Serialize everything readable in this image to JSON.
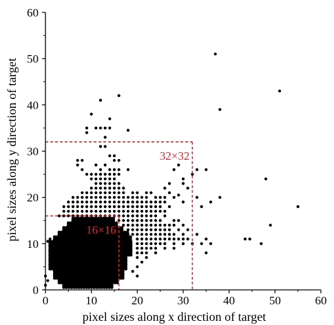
{
  "chart_data": {
    "type": "scatter",
    "title": "",
    "xlabel": "pixel sizes along x direction of target",
    "ylabel": "pixel sizes along y direction of target",
    "xlim": [
      0,
      60
    ],
    "ylim": [
      0,
      60
    ],
    "xticks": [
      0,
      10,
      20,
      30,
      40,
      50,
      60
    ],
    "yticks": [
      0,
      10,
      20,
      30,
      40,
      50,
      60
    ],
    "grid": false,
    "marker_color": "#000000",
    "annotation_color": "#e8262a",
    "annotations": [
      {
        "label": "16×16",
        "x0": 0,
        "y0": 0,
        "x1": 16,
        "y1": 16
      },
      {
        "label": "32×32",
        "x0": 0,
        "y0": 0,
        "x1": 32,
        "y1": 32
      }
    ],
    "dense_region": {
      "description_note": "",
      "rows": [
        {
          "y": 1,
          "x_from": 4,
          "x_to": 15
        },
        {
          "y": 2,
          "x_from": 3,
          "x_to": 16
        },
        {
          "y": 3,
          "x_from": 2,
          "x_to": 17
        },
        {
          "y": 4,
          "x_from": 2,
          "x_to": 17
        },
        {
          "y": 5,
          "x_from": 1,
          "x_to": 18
        },
        {
          "y": 6,
          "x_from": 1,
          "x_to": 18
        },
        {
          "y": 7,
          "x_from": 1,
          "x_to": 18
        },
        {
          "y": 8,
          "x_from": 1,
          "x_to": 19
        },
        {
          "y": 9,
          "x_from": 1,
          "x_to": 19
        },
        {
          "y": 10,
          "x_from": 1,
          "x_to": 19
        },
        {
          "y": 11,
          "x_from": 2,
          "x_to": 19
        },
        {
          "y": 12,
          "x_from": 3,
          "x_to": 18
        },
        {
          "y": 13,
          "x_from": 4,
          "x_to": 17
        },
        {
          "y": 14,
          "x_from": 5,
          "x_to": 16
        },
        {
          "y": 15,
          "x_from": 6,
          "x_to": 15
        }
      ]
    },
    "points": [
      [
        37,
        51
      ],
      [
        51,
        43
      ],
      [
        38,
        39
      ],
      [
        16,
        42
      ],
      [
        12,
        41
      ],
      [
        10,
        38
      ],
      [
        14,
        37
      ],
      [
        9,
        35
      ],
      [
        9,
        34
      ],
      [
        11,
        35
      ],
      [
        12,
        35
      ],
      [
        13,
        35
      ],
      [
        14,
        35
      ],
      [
        18,
        34.5
      ],
      [
        13,
        33
      ],
      [
        13,
        31
      ],
      [
        12,
        31
      ],
      [
        14,
        29
      ],
      [
        15,
        29
      ],
      [
        15,
        28
      ],
      [
        16,
        28
      ],
      [
        7,
        28
      ],
      [
        8,
        28
      ],
      [
        7,
        27
      ],
      [
        8,
        26
      ],
      [
        11,
        27
      ],
      [
        12,
        26
      ],
      [
        13,
        27
      ],
      [
        14,
        26
      ],
      [
        15,
        26
      ],
      [
        16,
        26
      ],
      [
        18,
        26
      ],
      [
        9,
        25
      ],
      [
        10,
        25
      ],
      [
        11,
        25
      ],
      [
        12,
        25
      ],
      [
        13,
        25
      ],
      [
        14,
        25
      ],
      [
        15,
        25
      ],
      [
        16,
        25
      ],
      [
        10,
        24
      ],
      [
        11,
        24
      ],
      [
        12,
        24
      ],
      [
        13,
        24
      ],
      [
        14,
        24
      ],
      [
        15,
        24
      ],
      [
        11,
        23
      ],
      [
        12,
        23
      ],
      [
        13,
        23
      ],
      [
        14,
        23
      ],
      [
        15,
        23
      ],
      [
        16,
        23
      ],
      [
        10,
        22
      ],
      [
        11,
        22
      ],
      [
        12,
        22
      ],
      [
        13,
        22
      ],
      [
        14,
        22
      ],
      [
        15,
        22
      ],
      [
        16,
        22
      ],
      [
        17,
        22
      ],
      [
        8,
        21
      ],
      [
        9,
        21
      ],
      [
        10,
        21
      ],
      [
        11,
        21
      ],
      [
        12,
        21
      ],
      [
        13,
        21
      ],
      [
        14,
        21
      ],
      [
        15,
        21
      ],
      [
        16,
        21
      ],
      [
        17,
        21
      ],
      [
        19,
        21
      ],
      [
        20,
        21
      ],
      [
        22,
        21
      ],
      [
        23,
        21
      ],
      [
        26,
        22
      ],
      [
        27,
        21
      ],
      [
        29,
        20.5
      ],
      [
        30,
        23
      ],
      [
        30,
        24
      ],
      [
        31,
        22
      ],
      [
        32,
        25
      ],
      [
        33,
        26
      ],
      [
        35,
        26
      ],
      [
        28,
        26
      ],
      [
        29,
        27
      ],
      [
        27,
        23
      ],
      [
        6,
        20
      ],
      [
        7,
        20
      ],
      [
        8,
        20
      ],
      [
        9,
        20
      ],
      [
        10,
        20
      ],
      [
        11,
        20
      ],
      [
        12,
        20
      ],
      [
        13,
        20
      ],
      [
        14,
        20
      ],
      [
        15,
        20
      ],
      [
        16,
        20
      ],
      [
        17,
        20
      ],
      [
        18,
        20
      ],
      [
        19,
        20
      ],
      [
        20,
        20
      ],
      [
        21,
        20
      ],
      [
        22,
        20
      ],
      [
        24,
        20
      ],
      [
        25,
        20
      ],
      [
        26,
        20
      ],
      [
        28,
        20
      ],
      [
        33,
        20
      ],
      [
        38,
        20
      ],
      [
        5,
        19
      ],
      [
        6,
        19
      ],
      [
        7,
        19
      ],
      [
        8,
        19
      ],
      [
        9,
        19
      ],
      [
        10,
        19
      ],
      [
        11,
        19
      ],
      [
        12,
        19
      ],
      [
        13,
        19
      ],
      [
        14,
        19
      ],
      [
        15,
        19
      ],
      [
        16,
        19
      ],
      [
        17,
        19
      ],
      [
        18,
        19
      ],
      [
        19,
        19
      ],
      [
        20,
        19
      ],
      [
        21,
        19
      ],
      [
        22,
        19
      ],
      [
        23,
        19
      ],
      [
        24,
        19
      ],
      [
        25,
        19
      ],
      [
        26,
        19
      ],
      [
        30,
        19
      ],
      [
        36,
        19
      ],
      [
        48,
        24
      ],
      [
        34,
        18
      ],
      [
        55,
        18
      ],
      [
        4,
        18
      ],
      [
        5,
        18
      ],
      [
        6,
        18
      ],
      [
        7,
        18
      ],
      [
        8,
        18
      ],
      [
        9,
        18
      ],
      [
        10,
        18
      ],
      [
        11,
        18
      ],
      [
        12,
        18
      ],
      [
        13,
        18
      ],
      [
        14,
        18
      ],
      [
        15,
        18
      ],
      [
        16,
        18
      ],
      [
        17,
        18
      ],
      [
        18,
        18
      ],
      [
        19,
        18
      ],
      [
        20,
        18
      ],
      [
        21,
        18
      ],
      [
        22,
        18
      ],
      [
        23,
        18
      ],
      [
        24,
        18
      ],
      [
        25,
        18
      ],
      [
        27,
        18
      ],
      [
        4,
        17
      ],
      [
        5,
        17
      ],
      [
        6,
        17
      ],
      [
        7,
        17
      ],
      [
        8,
        17
      ],
      [
        9,
        17
      ],
      [
        10,
        17
      ],
      [
        11,
        17
      ],
      [
        12,
        17
      ],
      [
        13,
        17
      ],
      [
        14,
        17
      ],
      [
        15,
        17
      ],
      [
        16,
        17
      ],
      [
        17,
        17
      ],
      [
        18,
        17
      ],
      [
        19,
        17
      ],
      [
        20,
        17
      ],
      [
        21,
        17
      ],
      [
        22,
        17
      ],
      [
        23,
        17
      ],
      [
        24,
        17
      ],
      [
        25,
        17
      ],
      [
        26,
        17
      ],
      [
        3,
        16
      ],
      [
        4,
        16
      ],
      [
        5,
        16
      ],
      [
        6,
        16
      ],
      [
        7,
        16
      ],
      [
        8,
        16
      ],
      [
        9,
        16
      ],
      [
        10,
        16
      ],
      [
        11,
        16
      ],
      [
        12,
        16
      ],
      [
        13,
        16
      ],
      [
        14,
        16
      ],
      [
        15,
        16
      ],
      [
        16,
        16
      ],
      [
        17,
        16
      ],
      [
        18,
        16
      ],
      [
        19,
        16
      ],
      [
        20,
        16
      ],
      [
        21,
        16
      ],
      [
        22,
        16
      ],
      [
        23,
        16
      ],
      [
        24,
        16
      ],
      [
        26,
        16
      ],
      [
        16,
        15
      ],
      [
        17,
        15
      ],
      [
        18,
        15
      ],
      [
        19,
        15
      ],
      [
        20,
        15
      ],
      [
        21,
        15
      ],
      [
        22,
        15
      ],
      [
        23,
        15
      ],
      [
        24,
        15
      ],
      [
        25,
        15
      ],
      [
        28,
        15
      ],
      [
        29,
        15
      ],
      [
        17,
        14
      ],
      [
        18,
        14
      ],
      [
        19,
        14
      ],
      [
        20,
        14
      ],
      [
        21,
        14
      ],
      [
        22,
        14
      ],
      [
        23,
        14
      ],
      [
        24,
        14
      ],
      [
        25,
        14
      ],
      [
        26,
        14
      ],
      [
        27,
        14
      ],
      [
        28,
        14
      ],
      [
        30,
        14
      ],
      [
        49,
        14
      ],
      [
        18,
        13
      ],
      [
        19,
        13
      ],
      [
        20,
        13
      ],
      [
        21,
        13
      ],
      [
        22,
        13
      ],
      [
        23,
        13
      ],
      [
        24,
        13
      ],
      [
        25,
        13
      ],
      [
        26,
        13
      ],
      [
        27,
        13
      ],
      [
        29,
        13
      ],
      [
        31,
        13
      ],
      [
        33,
        12
      ],
      [
        30,
        12
      ],
      [
        18,
        12
      ],
      [
        19,
        12
      ],
      [
        20,
        12
      ],
      [
        21,
        12
      ],
      [
        22,
        12
      ],
      [
        23,
        12
      ],
      [
        24,
        12
      ],
      [
        25,
        12
      ],
      [
        26,
        12
      ],
      [
        27,
        12
      ],
      [
        28,
        12
      ],
      [
        20,
        11
      ],
      [
        21,
        11
      ],
      [
        22,
        11
      ],
      [
        23,
        11
      ],
      [
        24,
        11
      ],
      [
        25,
        11
      ],
      [
        26,
        11
      ],
      [
        27,
        11
      ],
      [
        28,
        11
      ],
      [
        29,
        11
      ],
      [
        30,
        11
      ],
      [
        31,
        11
      ],
      [
        35,
        11
      ],
      [
        43.5,
        11
      ],
      [
        44.5,
        11
      ],
      [
        20,
        10
      ],
      [
        21,
        10
      ],
      [
        22,
        10
      ],
      [
        23,
        10
      ],
      [
        24,
        10
      ],
      [
        25,
        10
      ],
      [
        26,
        10
      ],
      [
        28,
        10
      ],
      [
        30,
        10
      ],
      [
        32,
        10
      ],
      [
        34,
        10
      ],
      [
        36,
        10
      ],
      [
        47,
        10
      ],
      [
        20,
        9
      ],
      [
        21,
        9
      ],
      [
        22,
        9
      ],
      [
        23,
        9
      ],
      [
        24,
        9
      ],
      [
        26,
        9
      ],
      [
        28,
        9
      ],
      [
        20,
        8
      ],
      [
        21,
        8
      ],
      [
        22,
        8
      ],
      [
        24,
        8
      ],
      [
        35,
        8
      ],
      [
        20,
        7
      ],
      [
        22,
        7
      ],
      [
        21,
        6
      ],
      [
        20,
        5
      ],
      [
        19,
        4
      ],
      [
        20,
        3
      ],
      [
        0.5,
        10.5
      ],
      [
        0.5,
        2
      ],
      [
        0,
        1
      ],
      [
        1,
        11
      ],
      [
        0,
        3
      ]
    ]
  }
}
